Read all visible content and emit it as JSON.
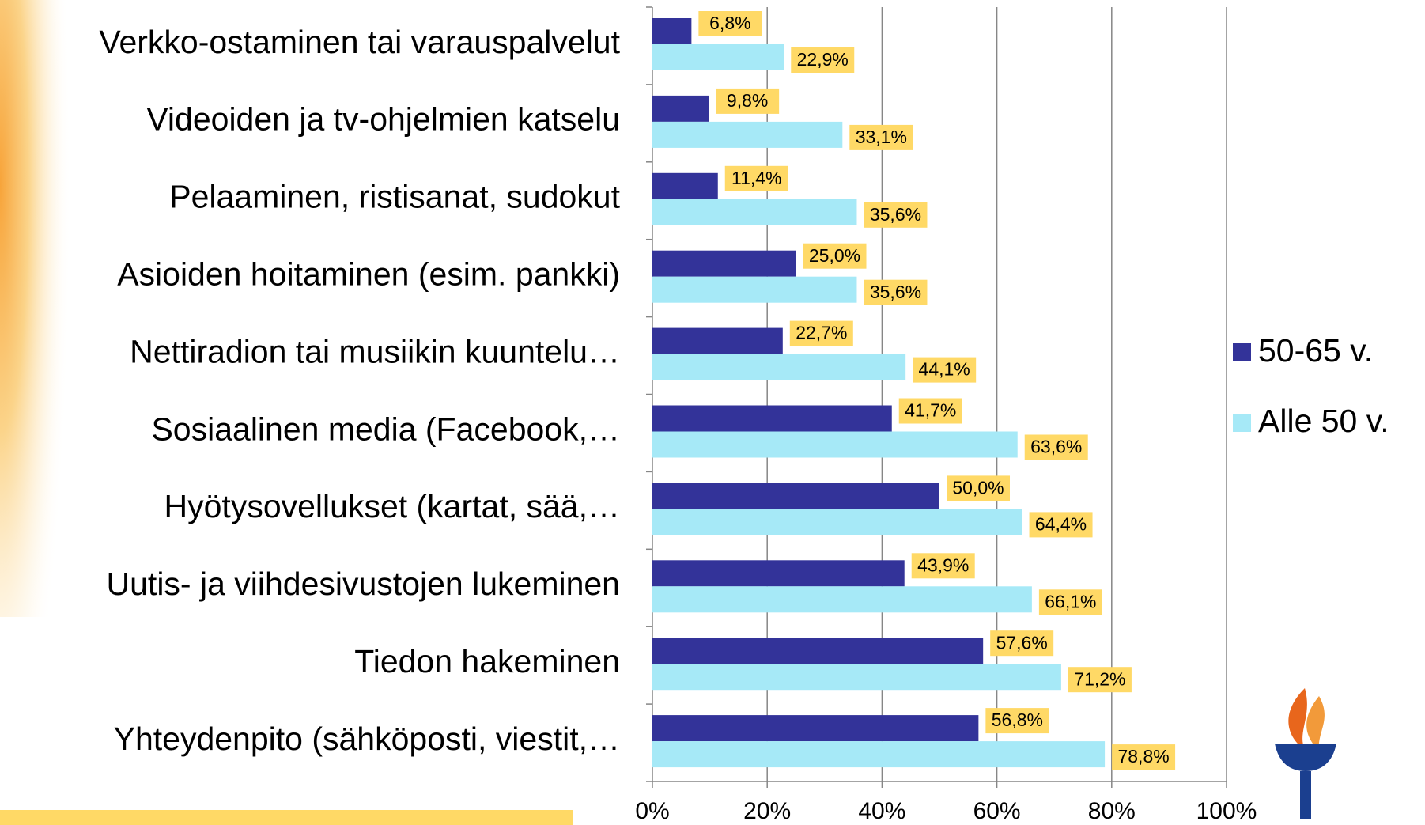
{
  "chart_data": {
    "type": "bar",
    "orientation": "horizontal",
    "categories": [
      "Verkko-ostaminen tai varauspalvelut",
      "Videoiden ja tv-ohjelmien katselu",
      "Pelaaminen, ristisanat, sudokut",
      "Asioiden hoitaminen (esim. pankki)",
      "Nettiradion tai musiikin kuuntelu…",
      "Sosiaalinen media (Facebook,…",
      "Hyötysovellukset (kartat, sää,…",
      "Uutis- ja viihdesivustojen lukeminen",
      "Tiedon hakeminen",
      "Yhteydenpito (sähköposti, viestit,…"
    ],
    "series": [
      {
        "name": "50-65 v.",
        "color": "#333399",
        "values": [
          6.8,
          9.8,
          11.4,
          25.0,
          22.7,
          41.7,
          50.0,
          43.9,
          57.6,
          56.8
        ],
        "value_labels": [
          "6,8%",
          "9,8%",
          "11,4%",
          "25,0%",
          "22,7%",
          "41,7%",
          "50,0%",
          "43,9%",
          "57,6%",
          "56,8%"
        ]
      },
      {
        "name": "Alle 50 v.",
        "color": "#a6e9f7",
        "values": [
          22.9,
          33.1,
          35.6,
          35.6,
          44.1,
          63.6,
          64.4,
          66.1,
          71.2,
          78.8
        ],
        "value_labels": [
          "22,9%",
          "33,1%",
          "35,6%",
          "35,6%",
          "44,1%",
          "63,6%",
          "64,4%",
          "66,1%",
          "71,2%",
          "78,8%"
        ]
      }
    ],
    "xlim": [
      0,
      100
    ],
    "xticks": [
      {
        "value": 0,
        "label": "0%"
      },
      {
        "value": 20,
        "label": "20%"
      },
      {
        "value": 40,
        "label": "40%"
      },
      {
        "value": 60,
        "label": "60%"
      },
      {
        "value": 80,
        "label": "80%"
      },
      {
        "value": 100,
        "label": "100%"
      }
    ],
    "grid": true,
    "legend": "right",
    "label_color": "#ffd966"
  }
}
